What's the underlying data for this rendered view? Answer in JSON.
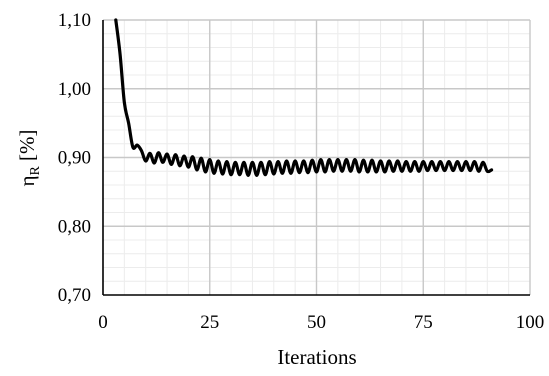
{
  "chart_data": {
    "type": "line",
    "title": "",
    "xlabel": "Iterations",
    "ylabel": {
      "symbol": "η",
      "subscript": "R",
      "unit": " [%]"
    },
    "xlim": [
      0,
      100
    ],
    "ylim": [
      0.7,
      1.1
    ],
    "x_ticks": [
      "0",
      "25",
      "50",
      "75",
      "100"
    ],
    "y_ticks": [
      "0,70",
      "0,80",
      "0,90",
      "1,00",
      "1,10"
    ],
    "grid": true,
    "legend": "none",
    "line_color": "#000000",
    "grid_major_color": "#c8c8c8",
    "grid_minor_color": "#ececec",
    "series": [
      {
        "x": [
          3,
          4,
          5,
          6,
          7,
          8,
          9,
          10,
          11,
          12,
          13,
          14,
          15,
          16,
          17,
          18,
          19,
          20,
          21,
          22,
          23,
          24,
          25,
          26,
          27,
          28,
          29,
          30,
          31,
          32,
          33,
          34,
          35,
          36,
          37,
          38,
          39,
          40,
          41,
          42,
          43,
          44,
          45,
          46,
          47,
          48,
          49,
          50,
          51,
          52,
          53,
          54,
          55,
          56,
          57,
          58,
          59,
          60,
          61,
          62,
          63,
          64,
          65,
          66,
          67,
          68,
          69,
          70,
          71,
          72,
          73,
          74,
          75,
          76,
          77,
          78,
          79,
          80,
          81,
          82,
          83,
          84,
          85,
          86,
          87,
          88,
          89,
          90,
          91
        ],
        "y": [
          1.1,
          1.05,
          0.98,
          0.95,
          0.915,
          0.918,
          0.91,
          0.895,
          0.906,
          0.892,
          0.907,
          0.893,
          0.905,
          0.89,
          0.904,
          0.888,
          0.902,
          0.886,
          0.901,
          0.882,
          0.899,
          0.879,
          0.897,
          0.877,
          0.895,
          0.876,
          0.894,
          0.875,
          0.893,
          0.875,
          0.893,
          0.874,
          0.893,
          0.874,
          0.893,
          0.875,
          0.894,
          0.876,
          0.894,
          0.877,
          0.895,
          0.877,
          0.895,
          0.878,
          0.895,
          0.878,
          0.896,
          0.879,
          0.897,
          0.879,
          0.897,
          0.88,
          0.897,
          0.88,
          0.897,
          0.88,
          0.897,
          0.879,
          0.896,
          0.879,
          0.896,
          0.879,
          0.895,
          0.879,
          0.895,
          0.88,
          0.895,
          0.88,
          0.894,
          0.88,
          0.894,
          0.88,
          0.894,
          0.881,
          0.894,
          0.881,
          0.894,
          0.881,
          0.894,
          0.881,
          0.894,
          0.881,
          0.894,
          0.881,
          0.894,
          0.88,
          0.893,
          0.88,
          0.882
        ]
      }
    ]
  }
}
